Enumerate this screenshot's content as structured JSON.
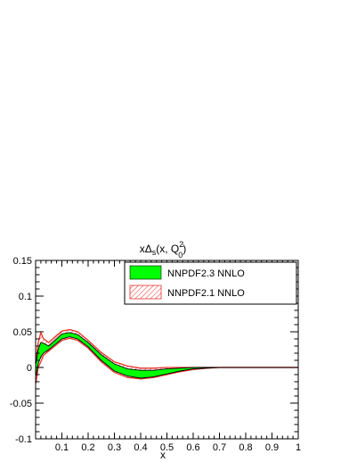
{
  "chart_data": {
    "type": "area",
    "title": "xΔs(x, Q₀²)",
    "title_parts": {
      "main": "xΔ",
      "sub_s": "s",
      "args": "(x, Q",
      "sup_2": "2",
      "sub_0": "0",
      "close": ")"
    },
    "xlabel": "x",
    "ylabel": "",
    "xlim": [
      0,
      1
    ],
    "ylim": [
      -0.1,
      0.15
    ],
    "x_ticks": [
      "0.1",
      "0.2",
      "0.3",
      "0.4",
      "0.5",
      "0.6",
      "0.7",
      "0.8",
      "0.9",
      "1"
    ],
    "y_ticks": [
      "-0.1",
      "-0.05",
      "0",
      "0.05",
      "0.1",
      "0.15"
    ],
    "grid": false,
    "legend_position": "top-right",
    "series": [
      {
        "name": "NNPDF2.3 NNLO",
        "style": "filled-band",
        "color": "#00ff00",
        "edge_color": "#000000",
        "x": [
          0.001,
          0.01,
          0.02,
          0.03,
          0.05,
          0.08,
          0.1,
          0.13,
          0.16,
          0.2,
          0.25,
          0.3,
          0.35,
          0.4,
          0.45,
          0.5,
          0.55,
          0.6,
          0.65,
          0.7,
          0.8,
          0.9,
          1.0
        ],
        "upper": [
          0.005,
          0.025,
          0.035,
          0.034,
          0.03,
          0.04,
          0.047,
          0.049,
          0.046,
          0.035,
          0.018,
          0.005,
          -0.002,
          -0.004,
          -0.004,
          -0.002,
          -0.001,
          0.0,
          0.0,
          0.0,
          0.0,
          0.0,
          0.0
        ],
        "lower": [
          -0.012,
          0.005,
          0.015,
          0.02,
          0.025,
          0.034,
          0.04,
          0.043,
          0.04,
          0.029,
          0.01,
          -0.005,
          -0.012,
          -0.015,
          -0.013,
          -0.009,
          -0.005,
          -0.002,
          -0.001,
          0.0,
          0.0,
          0.0,
          0.0
        ]
      },
      {
        "name": "NNPDF2.1 NNLO",
        "style": "hatched-band",
        "color": "#e8322a",
        "x": [
          0.001,
          0.01,
          0.02,
          0.03,
          0.05,
          0.08,
          0.1,
          0.13,
          0.16,
          0.2,
          0.25,
          0.3,
          0.35,
          0.4,
          0.45,
          0.5,
          0.55,
          0.6,
          0.65,
          0.7,
          0.8,
          0.9,
          1.0
        ],
        "upper": [
          0.01,
          0.035,
          0.049,
          0.04,
          0.035,
          0.045,
          0.051,
          0.053,
          0.05,
          0.038,
          0.021,
          0.008,
          0.002,
          -0.001,
          -0.001,
          0.0,
          0.0,
          0.0,
          0.0,
          0.0,
          0.0,
          0.0,
          0.0
        ],
        "lower": [
          -0.022,
          0.0,
          0.008,
          0.017,
          0.023,
          0.032,
          0.038,
          0.041,
          0.038,
          0.027,
          0.008,
          -0.007,
          -0.014,
          -0.016,
          -0.014,
          -0.01,
          -0.006,
          -0.003,
          -0.001,
          0.0,
          0.0,
          0.0,
          0.0
        ]
      }
    ]
  }
}
